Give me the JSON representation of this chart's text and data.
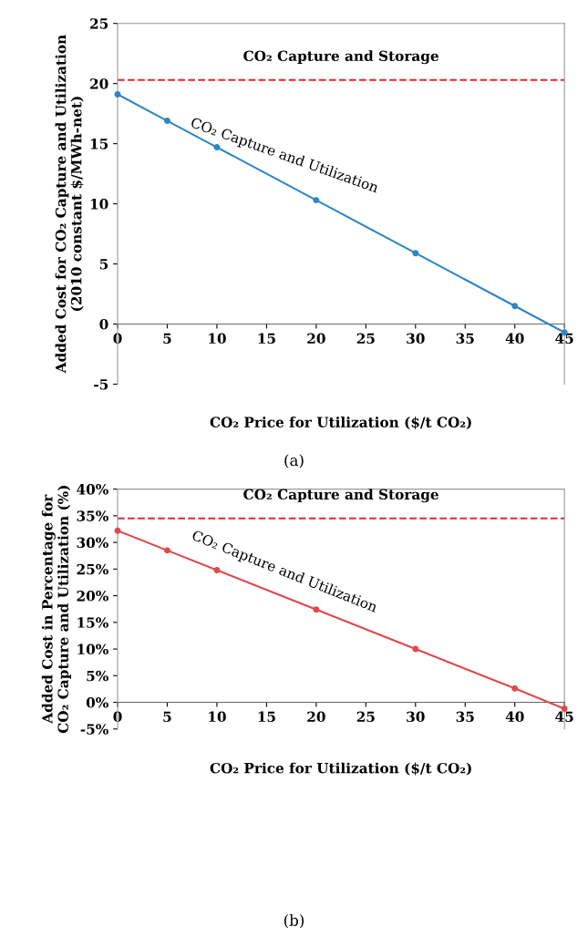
{
  "chart_data": [
    {
      "type": "line",
      "xlabel": "CO₂ Price for Utilization ($/t CO₂)",
      "ylabel": "Added Cost for CO₂ Capture and Utilization\n(2010 constant $/MWh-net)",
      "x": [
        0,
        5,
        10,
        20,
        30,
        40,
        45
      ],
      "series": [
        {
          "name": "CO₂ Capture and Utilization",
          "color": "#2e86c8",
          "values": [
            19.1,
            16.9,
            14.7,
            10.3,
            5.9,
            1.5,
            -0.7
          ]
        }
      ],
      "marker": "circle",
      "line_style": "solid",
      "xlim": [
        0,
        45
      ],
      "xticks": [
        0,
        5,
        10,
        15,
        20,
        25,
        30,
        35,
        40,
        45
      ],
      "ylim": [
        -5,
        25
      ],
      "yticks": [
        -5,
        0,
        5,
        10,
        15,
        20,
        25
      ],
      "ref_lines": [
        {
          "axis": "y",
          "value": 20.3,
          "label": "CO₂ Capture and Storage",
          "color": "#e8262a",
          "line_style": "dashed"
        }
      ],
      "annotations": [
        "(a)"
      ],
      "grid": false,
      "legend": false
    },
    {
      "type": "line",
      "xlabel": "CO₂ Price for Utilization ($/t CO₂)",
      "ylabel": "Added Cost in Percentage for\nCO₂ Capture and Utilization (%)",
      "x": [
        0,
        5,
        10,
        20,
        30,
        40,
        45
      ],
      "series": [
        {
          "name": "CO₂ Capture and Utilization",
          "color": "#e0484c",
          "values": [
            32.2,
            28.5,
            24.8,
            17.4,
            10.0,
            2.6,
            -1.2
          ]
        }
      ],
      "marker": "circle",
      "line_style": "solid",
      "xlim": [
        0,
        45
      ],
      "xticks": [
        0,
        5,
        10,
        15,
        20,
        25,
        30,
        35,
        40,
        45
      ],
      "ylim": [
        -5,
        40
      ],
      "yticks": [
        {
          "value": -5,
          "label": "-5%"
        },
        {
          "value": 0,
          "label": "0%"
        },
        {
          "value": 5,
          "label": "5%"
        },
        {
          "value": 10,
          "label": "10%"
        },
        {
          "value": 15,
          "label": "15%"
        },
        {
          "value": 20,
          "label": "20%"
        },
        {
          "value": 25,
          "label": "25%"
        },
        {
          "value": 30,
          "label": "30%"
        },
        {
          "value": 35,
          "label": "35%"
        },
        {
          "value": 40,
          "label": "40%"
        }
      ],
      "ref_lines": [
        {
          "axis": "y",
          "value": 34.5,
          "label": "CO₂ Capture and Storage",
          "color": "#e8262a",
          "line_style": "dashed"
        }
      ],
      "annotations": [
        "(b)"
      ],
      "grid": false,
      "legend": false
    }
  ]
}
